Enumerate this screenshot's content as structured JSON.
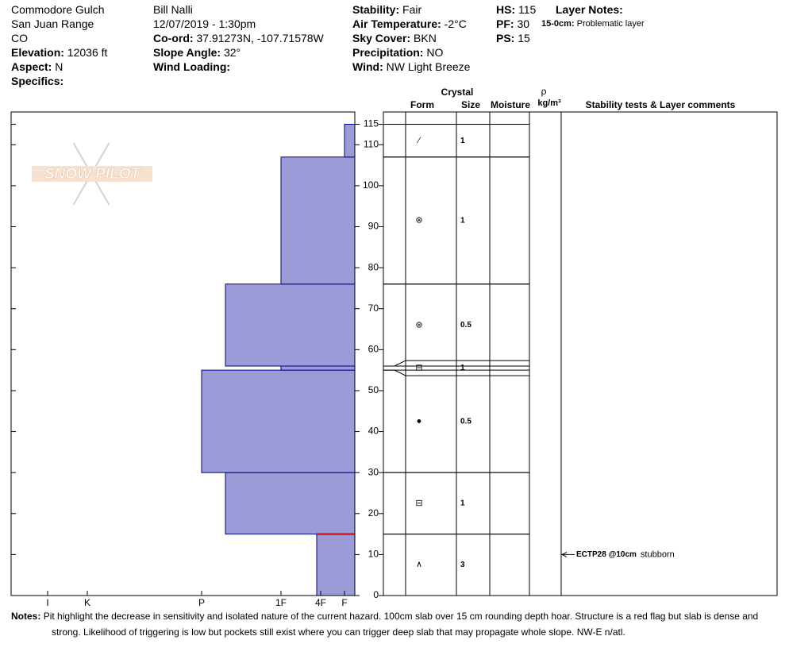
{
  "header": {
    "columns": [
      [
        {
          "text": "Commodore Gulch"
        },
        {
          "text": "San Juan Range"
        },
        {
          "text": "CO"
        },
        {
          "label": "Elevation:",
          "value": "12036 ft"
        },
        {
          "label": "Aspect:",
          "value": "N"
        },
        {
          "label": "Specifics:"
        }
      ],
      [
        {
          "text": "Bill Nalli"
        },
        {
          "text": "12/07/2019 - 1:30pm"
        },
        {
          "label": "Co-ord:",
          "value": "37.91273N, -107.71578W"
        },
        {
          "label": "Slope Angle:",
          "value": "32°"
        },
        {
          "label": "Wind Loading:"
        }
      ],
      [
        {
          "label": "Stability:",
          "value": "Fair"
        },
        {
          "label": "Air Temperature:",
          "value": "-2°C"
        },
        {
          "label": "Sky Cover:",
          "value": "BKN"
        },
        {
          "label": "Precipitation:",
          "value": "NO"
        },
        {
          "label": "Wind:",
          "value": "NW Light Breeze"
        }
      ],
      [
        {
          "label": "HS:",
          "value": "115"
        },
        {
          "label": "PF:",
          "value": "30"
        },
        {
          "label": "PS:",
          "value": "15"
        }
      ],
      [
        {
          "label": "Layer Notes:"
        },
        {
          "label": "15-0cm:",
          "value": "Problematic layer"
        }
      ]
    ]
  },
  "logo": "SNOW PILOT",
  "chart_data": {
    "type": "profile",
    "table_headers": {
      "crystal": "Crystal",
      "form": "Form",
      "size": "Size",
      "moisture": "Moisture",
      "density": "ρ",
      "density_unit": "kg/m³",
      "comments": "Stability tests & Layer comments"
    },
    "layers": [
      {
        "bottom": 0,
        "top": 15,
        "hardness": 2.1,
        "form": "∧",
        "size": 3
      },
      {
        "bottom": 15,
        "top": 30,
        "hardness": 3.7,
        "form": "⊟",
        "size": 1
      },
      {
        "bottom": 30,
        "top": 55,
        "hardness": 4,
        "form": "●",
        "size": 0.5
      },
      {
        "bottom": 55,
        "top": 56,
        "hardness": 3,
        "form": "⊟",
        "size": 1
      },
      {
        "bottom": 56,
        "top": 76,
        "hardness": 3.7,
        "form": "⊛",
        "size": 0.5
      },
      {
        "bottom": 76,
        "top": 107,
        "hardness": 3,
        "form": "⊛",
        "size": 1
      },
      {
        "bottom": 107,
        "top": 115,
        "hardness": 1,
        "form": "⁄",
        "size": 1
      }
    ],
    "xticks": [
      {
        "value": 6,
        "label": "I"
      },
      {
        "value": 5,
        "label": "K"
      },
      {
        "value": 4,
        "label": "P"
      },
      {
        "value": 3,
        "label": "1F"
      },
      {
        "value": 2,
        "label": "4F"
      },
      {
        "value": 1,
        "label": "F"
      }
    ],
    "ylim": [
      0,
      118
    ],
    "yticks": [
      0,
      10,
      20,
      30,
      40,
      50,
      60,
      70,
      80,
      90,
      100,
      110,
      115
    ],
    "color": "#9b9bd7",
    "tests": [
      {
        "depth": 10,
        "result": "ECTP28 @10cm",
        "comment": "stubborn"
      }
    ]
  },
  "notes": {
    "label": "Notes:",
    "text": "Pit highlight the decrease in sensitivity and isolated nature of the current hazard. 100cm slab over 15 cm rounding depth hoar. Structure is a red flag but slab is dense and strong. Likelihood of triggering is low but pockets still exist where you can trigger deep slab that may propagate whole slope. NW-E n/atl."
  }
}
